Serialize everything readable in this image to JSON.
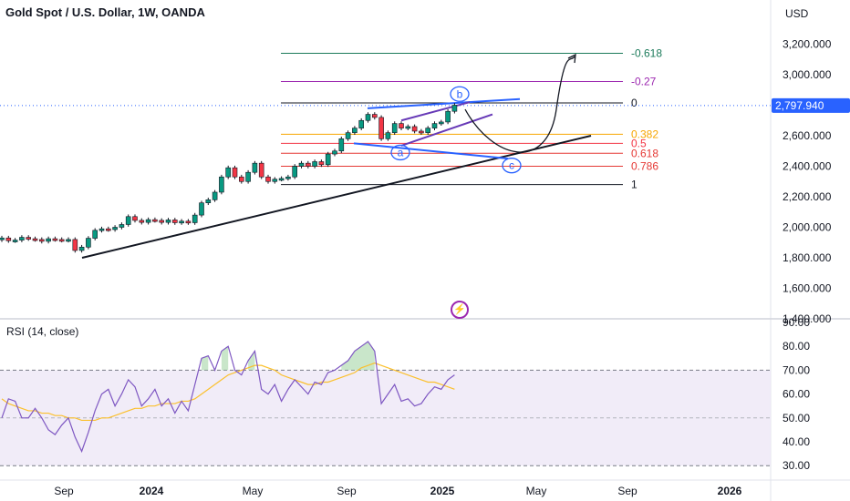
{
  "header": {
    "symbol_title": "Gold Spot / U.S. Dollar, 1W, OANDA",
    "currency": "USD"
  },
  "colors": {
    "up": "#089981",
    "down": "#f23645",
    "candle_outline": "#131722",
    "accent_blue": "#2962ff",
    "rsi_line": "#7e57c2",
    "rsi_ma": "#fbc02d",
    "rsi_band_fill": "#ede7f6"
  },
  "chart_data": [
    {
      "type": "candlestick",
      "symbol": "Gold Spot / U.S. Dollar",
      "interval": "1W",
      "source": "OANDA",
      "ylim": [
        1400,
        3400
      ],
      "y_ticks": [
        "3,200.000",
        "3,000.000",
        "2,800.000",
        "2,600.000",
        "2,400.000",
        "2,200.000",
        "2,000.000",
        "1,800.000",
        "1,600.000",
        "1,400.000"
      ],
      "y_tick_values": [
        3200,
        3000,
        2800,
        2600,
        2400,
        2200,
        2000,
        1800,
        1600,
        1400
      ],
      "x_ticks": [
        "Sep",
        "2024",
        "May",
        "Sep",
        "2025",
        "May",
        "Sep",
        "2026"
      ],
      "x_tick_bold": [
        false,
        true,
        false,
        false,
        true,
        false,
        false,
        true
      ],
      "last_price": 2797.94,
      "last_price_label": "2,797.940",
      "closes": [
        1930,
        1912,
        1916,
        1934,
        1925,
        1920,
        1908,
        1925,
        1920,
        1915,
        1920,
        1848,
        1870,
        1928,
        1980,
        1990,
        1985,
        2000,
        2018,
        2070,
        2045,
        2032,
        2050,
        2045,
        2032,
        2048,
        2030,
        2040,
        2030,
        2080,
        2160,
        2180,
        2230,
        2330,
        2390,
        2330,
        2300,
        2360,
        2420,
        2330,
        2300,
        2315,
        2320,
        2330,
        2400,
        2420,
        2400,
        2430,
        2410,
        2480,
        2500,
        2580,
        2620,
        2650,
        2700,
        2740,
        2720,
        2580,
        2620,
        2680,
        2650,
        2660,
        2630,
        2620,
        2650,
        2680,
        2690,
        2760,
        2800
      ],
      "fibonacci": [
        {
          "label": "-0.618",
          "price": 3140,
          "color": "#1b7a5a"
        },
        {
          "label": "-0.27",
          "price": 2955,
          "color": "#9c27b0"
        },
        {
          "label": "0",
          "price": 2815,
          "color": "#131722"
        },
        {
          "label": "0.382",
          "price": 2610,
          "color": "#f7a600"
        },
        {
          "label": "0.5",
          "price": 2550,
          "color": "#f23645"
        },
        {
          "label": "0.618",
          "price": 2485,
          "color": "#e53935"
        },
        {
          "label": "0.786",
          "price": 2400,
          "color": "#e53935"
        },
        {
          "label": "1",
          "price": 2280,
          "color": "#131722"
        }
      ],
      "wave_labels": [
        "a",
        "b",
        "c"
      ]
    },
    {
      "type": "line",
      "title": "RSI (14, close)",
      "ylim": [
        25,
        93
      ],
      "y_ticks": [
        "90.00",
        "80.00",
        "70.00",
        "60.00",
        "50.00",
        "40.00",
        "30.00"
      ],
      "y_tick_values": [
        90,
        80,
        70,
        60,
        50,
        40,
        30
      ],
      "band": [
        30,
        70
      ],
      "midline": 50,
      "series": [
        {
          "values": [
            50,
            58,
            57,
            50,
            50,
            54,
            50,
            45,
            43,
            47,
            50,
            42,
            36,
            44,
            53,
            60,
            62,
            55,
            60,
            66,
            63,
            55,
            58,
            62,
            55,
            58,
            52,
            57,
            53,
            64,
            75,
            76,
            70,
            78,
            80,
            70,
            68,
            74,
            78,
            62,
            60,
            64,
            57,
            62,
            66,
            63,
            60,
            65,
            64,
            69,
            70,
            72,
            74,
            78,
            80,
            82,
            78,
            56,
            60,
            64,
            57,
            58,
            55,
            56,
            60,
            63,
            62,
            66,
            68
          ]
        },
        {
          "values": [
            58,
            56,
            55,
            54,
            53,
            53,
            52,
            52,
            51,
            51,
            50,
            50,
            49,
            49,
            49,
            50,
            50,
            51,
            52,
            53,
            54,
            54,
            55,
            55,
            56,
            56,
            56,
            57,
            57,
            58,
            60,
            62,
            64,
            66,
            68,
            69,
            70,
            71,
            72,
            72,
            71,
            70,
            68,
            67,
            66,
            65,
            64,
            64,
            65,
            65,
            66,
            67,
            68,
            69,
            71,
            72,
            73,
            72,
            71,
            70,
            69,
            68,
            67,
            66,
            65,
            65,
            64,
            63,
            62
          ]
        }
      ]
    }
  ]
}
